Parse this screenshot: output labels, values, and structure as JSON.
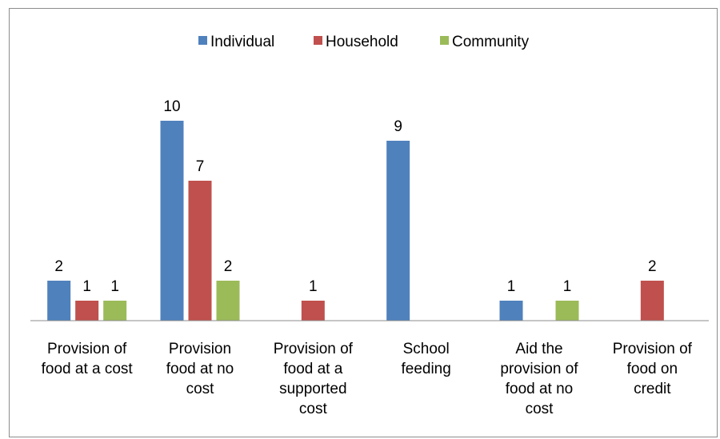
{
  "chart_data": {
    "type": "bar",
    "title": "",
    "xlabel": "",
    "ylabel": "",
    "ylim": [
      0,
      11
    ],
    "grid": false,
    "legend_position": "top",
    "categories": [
      [
        "Provision of",
        "food at a cost"
      ],
      [
        "Provision",
        "food at no",
        "cost"
      ],
      [
        "Provision of",
        "food at a",
        "supported",
        "cost"
      ],
      [
        "School",
        "feeding"
      ],
      [
        "Aid the",
        "provision of",
        "food at no",
        "cost"
      ],
      [
        "Provision of",
        "food on",
        "credit"
      ]
    ],
    "series": [
      {
        "name": "Individual",
        "color": "#4f81bd",
        "values": [
          2,
          10,
          null,
          9,
          1,
          null
        ]
      },
      {
        "name": "Household",
        "color": "#c0504d",
        "values": [
          1,
          7,
          1,
          null,
          null,
          2
        ]
      },
      {
        "name": "Community",
        "color": "#9bbb59",
        "values": [
          1,
          2,
          null,
          null,
          1,
          null
        ]
      }
    ]
  }
}
